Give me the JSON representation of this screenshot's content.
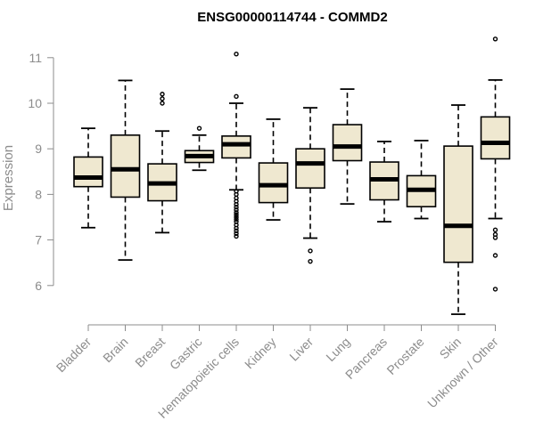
{
  "colors": {
    "box_fill": "#efe8d0",
    "box_stroke": "#000000",
    "axis": "#8c8c8c",
    "title": "#000000"
  },
  "chart_data": {
    "type": "boxplot",
    "title": "ENSG00000114744 - COMMD2",
    "xlabel": "",
    "ylabel": "Expression",
    "ylim": [
      5.0,
      11.6
    ],
    "yticks": [
      6,
      7,
      8,
      9,
      10,
      11
    ],
    "categories": [
      "Bladder",
      "Brain",
      "Breast",
      "Gastric",
      "Hematopoietic cells",
      "Kidney",
      "Liver",
      "Lung",
      "Pancreas",
      "Prostate",
      "Skin",
      "Unknown / Other"
    ],
    "boxes": [
      {
        "name": "Bladder",
        "whisker_low": 7.27,
        "q1": 8.17,
        "median": 8.37,
        "q3": 8.82,
        "whisker_high": 9.45,
        "outliers": []
      },
      {
        "name": "Brain",
        "whisker_low": 6.56,
        "q1": 7.94,
        "median": 8.55,
        "q3": 9.3,
        "whisker_high": 10.5,
        "outliers": []
      },
      {
        "name": "Breast",
        "whisker_low": 7.16,
        "q1": 7.86,
        "median": 8.24,
        "q3": 8.67,
        "whisker_high": 9.39,
        "outliers": [
          10.0,
          10.1,
          10.2
        ]
      },
      {
        "name": "Gastric",
        "whisker_low": 8.53,
        "q1": 8.7,
        "median": 8.84,
        "q3": 8.96,
        "whisker_high": 9.3,
        "outliers": [
          9.45
        ]
      },
      {
        "name": "Hematopoietic cells",
        "whisker_low": 8.1,
        "q1": 8.8,
        "median": 9.1,
        "q3": 9.28,
        "whisker_high": 10.0,
        "outliers": [
          11.08,
          10.15,
          8.07,
          8.0,
          7.92,
          7.85,
          7.78,
          7.72,
          7.66,
          7.6,
          7.55,
          7.5,
          7.45,
          7.4,
          7.33,
          7.26,
          7.2,
          7.14,
          7.08
        ]
      },
      {
        "name": "Kidney",
        "whisker_low": 7.44,
        "q1": 7.82,
        "median": 8.2,
        "q3": 8.69,
        "whisker_high": 9.65,
        "outliers": []
      },
      {
        "name": "Liver",
        "whisker_low": 7.04,
        "q1": 8.14,
        "median": 8.68,
        "q3": 9.0,
        "whisker_high": 9.9,
        "outliers": [
          6.76,
          6.53
        ]
      },
      {
        "name": "Lung",
        "whisker_low": 7.79,
        "q1": 8.74,
        "median": 9.05,
        "q3": 9.53,
        "whisker_high": 10.31,
        "outliers": []
      },
      {
        "name": "Pancreas",
        "whisker_low": 7.4,
        "q1": 7.88,
        "median": 8.33,
        "q3": 8.71,
        "whisker_high": 9.16,
        "outliers": []
      },
      {
        "name": "Prostate",
        "whisker_low": 7.47,
        "q1": 7.73,
        "median": 8.1,
        "q3": 8.41,
        "whisker_high": 9.18,
        "outliers": []
      },
      {
        "name": "Skin",
        "whisker_low": 5.37,
        "q1": 6.51,
        "median": 7.31,
        "q3": 9.06,
        "whisker_high": 9.96,
        "outliers": []
      },
      {
        "name": "Unknown / Other",
        "whisker_low": 7.47,
        "q1": 8.78,
        "median": 9.13,
        "q3": 9.7,
        "whisker_high": 10.51,
        "outliers": [
          11.41,
          7.22,
          7.12,
          7.05,
          6.66,
          5.92
        ]
      }
    ]
  }
}
